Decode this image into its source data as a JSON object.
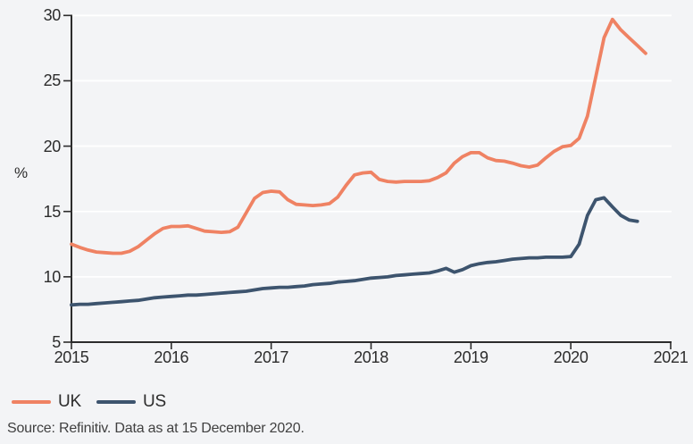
{
  "chart_data": {
    "type": "line",
    "title": "",
    "ylabel": "%",
    "grid": "horizontal",
    "legend_position": "bottom-left",
    "x_axis": {
      "range": [
        2015,
        2021
      ],
      "tick_values": [
        2015,
        2016,
        2017,
        2018,
        2019,
        2020,
        2021
      ],
      "tick_labels": [
        "2015",
        "2016",
        "2017",
        "2018",
        "2019",
        "2020",
        "2021"
      ]
    },
    "y_axis": {
      "range": [
        5,
        30
      ],
      "tick_values": [
        5,
        10,
        15,
        20,
        25,
        30
      ],
      "tick_labels": [
        "5",
        "10",
        "15",
        "20",
        "25",
        "30"
      ],
      "unit": "%"
    },
    "series": [
      {
        "name": "UK",
        "color": "#ef8263",
        "x_start_year": 2015,
        "points_per_year": 12,
        "interval": "monthly",
        "values": [
          12.5,
          12.25,
          12.05,
          11.9,
          11.85,
          11.8,
          11.8,
          11.95,
          12.3,
          12.8,
          13.3,
          13.7,
          13.85,
          13.85,
          13.9,
          13.7,
          13.5,
          13.45,
          13.4,
          13.45,
          13.8,
          14.9,
          16.0,
          16.45,
          16.55,
          16.5,
          15.9,
          15.55,
          15.5,
          15.45,
          15.5,
          15.6,
          16.1,
          17.0,
          17.8,
          17.95,
          18.0,
          17.45,
          17.3,
          17.25,
          17.3,
          17.3,
          17.3,
          17.35,
          17.6,
          17.95,
          18.7,
          19.2,
          19.5,
          19.5,
          19.1,
          18.9,
          18.85,
          18.7,
          18.5,
          18.4,
          18.55,
          19.1,
          19.6,
          19.95,
          20.05,
          20.6,
          22.3,
          25.3,
          28.3,
          29.7,
          28.9,
          28.3,
          27.7,
          27.1
        ]
      },
      {
        "name": "US",
        "color": "#3d546e",
        "x_start_year": 2015,
        "points_per_year": 12,
        "interval": "monthly",
        "values": [
          7.85,
          7.9,
          7.9,
          7.95,
          8.0,
          8.05,
          8.1,
          8.15,
          8.2,
          8.3,
          8.4,
          8.45,
          8.5,
          8.55,
          8.6,
          8.6,
          8.65,
          8.7,
          8.75,
          8.8,
          8.85,
          8.9,
          9.0,
          9.1,
          9.15,
          9.2,
          9.2,
          9.25,
          9.3,
          9.4,
          9.45,
          9.5,
          9.6,
          9.65,
          9.7,
          9.8,
          9.9,
          9.95,
          10.0,
          10.1,
          10.15,
          10.2,
          10.25,
          10.3,
          10.45,
          10.65,
          10.35,
          10.55,
          10.85,
          11.0,
          11.1,
          11.15,
          11.25,
          11.35,
          11.4,
          11.45,
          11.45,
          11.5,
          11.5,
          11.5,
          11.55,
          12.5,
          14.7,
          15.9,
          16.05,
          15.35,
          14.7,
          14.35,
          14.25
        ]
      }
    ]
  },
  "source_note": "Source: Refinitiv. Data as at 15 December 2020.",
  "colors": {
    "background": "#f3f4f6",
    "gridline": "#ffffff",
    "axis": "#2c2c2c",
    "text": "#2c2c2c",
    "uk_line": "#ef8263",
    "us_line": "#3d546e"
  }
}
